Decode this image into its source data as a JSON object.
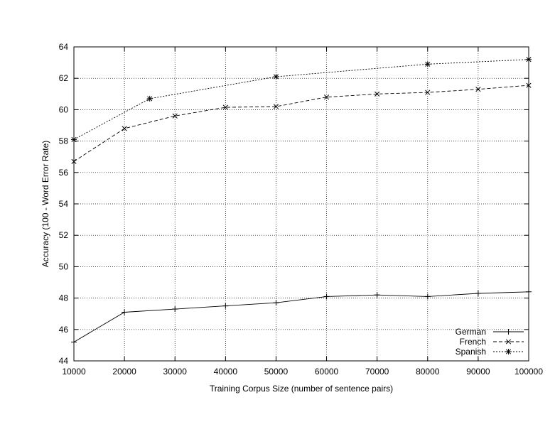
{
  "chart_data": {
    "type": "line",
    "title": "",
    "xlabel": "Training Corpus Size (number of sentence pairs)",
    "ylabel": "Accuracy (100 - Word Error Rate)",
    "xlim": [
      10000,
      100000
    ],
    "ylim": [
      44,
      64
    ],
    "xticks": [
      10000,
      20000,
      30000,
      40000,
      50000,
      60000,
      70000,
      80000,
      90000,
      100000
    ],
    "yticks": [
      44,
      46,
      48,
      50,
      52,
      54,
      56,
      58,
      60,
      62,
      64
    ],
    "grid": true,
    "legend_position": "bottom-right",
    "series": [
      {
        "name": "German",
        "marker": "plus",
        "dash": "solid",
        "x": [
          10000,
          20000,
          30000,
          40000,
          50000,
          60000,
          70000,
          80000,
          90000,
          100000
        ],
        "y": [
          45.2,
          47.1,
          47.3,
          47.5,
          47.7,
          48.1,
          48.2,
          48.1,
          48.3,
          48.4
        ]
      },
      {
        "name": "French",
        "marker": "cross",
        "dash": "dashed",
        "x": [
          10000,
          20000,
          30000,
          40000,
          50000,
          60000,
          70000,
          80000,
          90000,
          100000
        ],
        "y": [
          56.7,
          58.8,
          59.6,
          60.15,
          60.2,
          60.8,
          61.0,
          61.1,
          61.3,
          61.55
        ]
      },
      {
        "name": "Spanish",
        "marker": "star",
        "dash": "dotted",
        "x": [
          10000,
          25000,
          50000,
          80000,
          100000
        ],
        "y": [
          58.1,
          60.7,
          62.1,
          62.9,
          63.2
        ]
      }
    ]
  }
}
